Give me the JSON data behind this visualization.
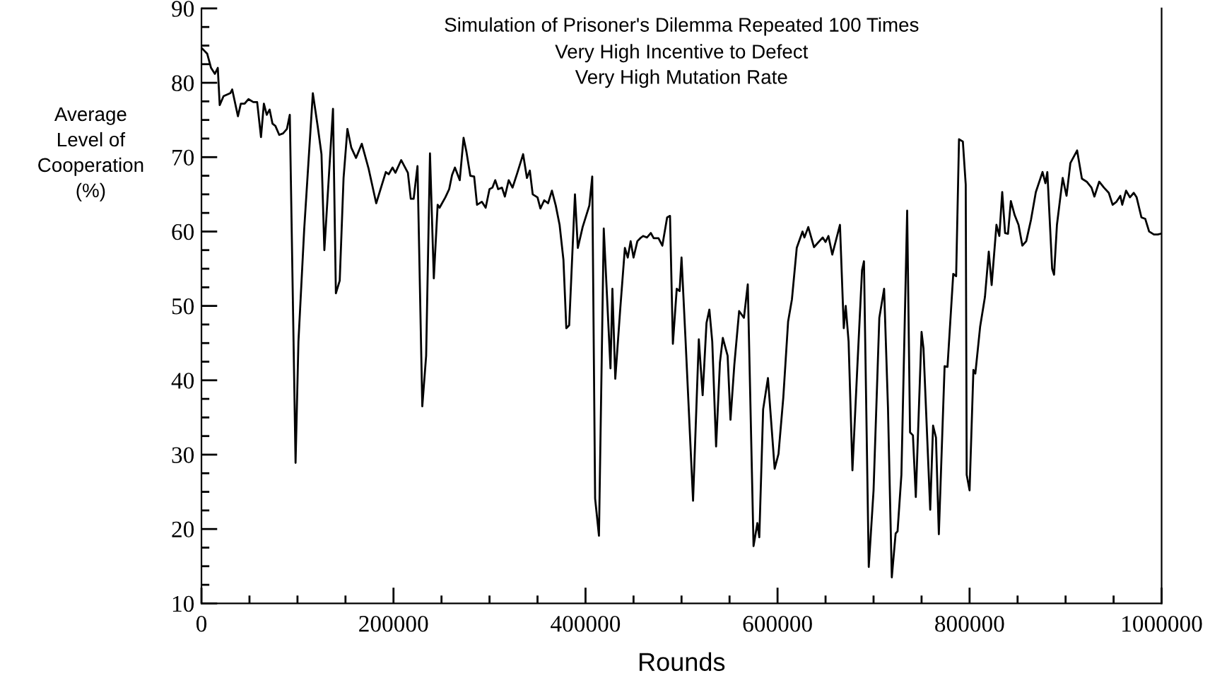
{
  "chart_data": {
    "type": "line",
    "title": "Simulation of Prisoner's Dilemma Repeated 100 Times",
    "subtitle": "Very High Incentive to Defect\nVery High Mutation Rate",
    "xlabel": "Rounds",
    "ylabel": "Average\nLevel of\nCooperation\n(%)",
    "xlim": [
      0,
      1000000
    ],
    "ylim": [
      10,
      90
    ],
    "xticks": [
      0,
      {
        "value": 50000,
        "label": null
      },
      {
        "value": 100000,
        "label": null
      },
      {
        "value": 150000,
        "label": null
      },
      200000,
      {
        "value": 250000,
        "label": null
      },
      {
        "value": 300000,
        "label": null
      },
      {
        "value": 350000,
        "label": null
      },
      400000,
      {
        "value": 450000,
        "label": null
      },
      {
        "value": 500000,
        "label": null
      },
      {
        "value": 550000,
        "label": null
      },
      600000,
      {
        "value": 650000,
        "label": null
      },
      {
        "value": 700000,
        "label": null
      },
      {
        "value": 750000,
        "label": null
      },
      800000,
      {
        "value": 850000,
        "label": null
      },
      {
        "value": 900000,
        "label": null
      },
      {
        "value": 950000,
        "label": null
      },
      1000000
    ],
    "yticks": [
      10,
      {
        "value": 12.5,
        "label": null
      },
      {
        "value": 15,
        "label": null
      },
      {
        "value": 17.5,
        "label": null
      },
      20,
      {
        "value": 22.5,
        "label": null
      },
      {
        "value": 25,
        "label": null
      },
      {
        "value": 27.5,
        "label": null
      },
      30,
      {
        "value": 32.5,
        "label": null
      },
      {
        "value": 35,
        "label": null
      },
      {
        "value": 37.5,
        "label": null
      },
      40,
      {
        "value": 42.5,
        "label": null
      },
      {
        "value": 45,
        "label": null
      },
      {
        "value": 47.5,
        "label": null
      },
      50,
      {
        "value": 52.5,
        "label": null
      },
      {
        "value": 55,
        "label": null
      },
      {
        "value": 57.5,
        "label": null
      },
      60,
      {
        "value": 62.5,
        "label": null
      },
      {
        "value": 65,
        "label": null
      },
      {
        "value": 67.5,
        "label": null
      },
      70,
      {
        "value": 72.5,
        "label": null
      },
      {
        "value": 75,
        "label": null
      },
      {
        "value": 77.5,
        "label": null
      },
      80,
      {
        "value": 82.5,
        "label": null
      },
      {
        "value": 85,
        "label": null
      },
      {
        "value": 87.5,
        "label": null
      },
      90
    ],
    "grid": false,
    "legend": false,
    "marker": "none",
    "line_style": "solid",
    "series": [
      {
        "color": "#000000",
        "x": [
          0,
          6000,
          10000,
          14000,
          17000,
          19000,
          23000,
          30000,
          32000,
          38000,
          41000,
          45000,
          49000,
          54000,
          58000,
          62000,
          65000,
          68000,
          71000,
          74000,
          77000,
          81000,
          85000,
          89000,
          92000,
          98000,
          101000,
          107000,
          116000,
          121000,
          125000,
          128000,
          137000,
          140000,
          144000,
          148000,
          152000,
          156000,
          161000,
          167000,
          174000,
          182000,
          192000,
          195000,
          199000,
          202000,
          208000,
          215000,
          218000,
          221000,
          225000,
          230000,
          234000,
          238000,
          242000,
          246000,
          248000,
          254000,
          258000,
          261000,
          264000,
          269000,
          273000,
          276000,
          280000,
          284000,
          287000,
          292000,
          296000,
          300000,
          303000,
          306000,
          309000,
          313000,
          316000,
          320000,
          324000,
          329000,
          335000,
          339000,
          342000,
          345000,
          350000,
          353000,
          357000,
          361000,
          365000,
          369000,
          373000,
          377000,
          380000,
          383000,
          389000,
          392000,
          397000,
          404000,
          407000,
          410000,
          414000,
          419000,
          426000,
          428000,
          431000,
          436000,
          441000,
          444000,
          447000,
          450000,
          454000,
          457000,
          460000,
          464000,
          468000,
          471000,
          476000,
          480000,
          485000,
          488000,
          491000,
          495000,
          498000,
          500000,
          504000,
          512000,
          518000,
          522000,
          526000,
          529000,
          532000,
          536000,
          540000,
          543000,
          548000,
          551000,
          555000,
          560000,
          565000,
          569000,
          575000,
          579000,
          581000,
          585000,
          590000,
          597000,
          601000,
          606000,
          611000,
          615000,
          620000,
          626000,
          628000,
          632000,
          638000,
          647000,
          650000,
          653000,
          657000,
          665000,
          669000,
          671000,
          674000,
          678000,
          683000,
          688000,
          690000,
          695000,
          700000,
          706000,
          711000,
          715000,
          719000,
          723000,
          725000,
          729000,
          735000,
          738000,
          741000,
          744000,
          750000,
          752000,
          759000,
          762000,
          765000,
          768000,
          774000,
          777000,
          783000,
          786000,
          789000,
          793000,
          796000,
          797000,
          800000,
          804000,
          806000,
          811000,
          816000,
          820000,
          823000,
          828000,
          831000,
          834000,
          837000,
          840000,
          843000,
          847000,
          851000,
          855000,
          859000,
          864000,
          869000,
          876000,
          879000,
          881000,
          886000,
          888000,
          891000,
          897000,
          901000,
          905000,
          912000,
          917000,
          922000,
          927000,
          930000,
          935000,
          940000,
          945000,
          949000,
          953000,
          957000,
          959000,
          963000,
          967000,
          971000,
          974000,
          979000,
          983000,
          987000,
          992000,
          996000,
          999000
        ],
        "values": [
          84.7,
          83.9,
          82.0,
          81.2,
          82.0,
          77.0,
          78.2,
          78.6,
          79.1,
          75.5,
          77.2,
          77.2,
          77.8,
          77.4,
          77.4,
          72.7,
          77.2,
          75.7,
          76.4,
          74.5,
          74.2,
          73.0,
          73.2,
          73.8,
          75.7,
          28.9,
          45.2,
          60.3,
          78.6,
          74.2,
          70.4,
          57.5,
          76.5,
          51.7,
          53.4,
          67.2,
          73.8,
          71.3,
          69.9,
          71.8,
          68.5,
          63.8,
          68.0,
          67.7,
          68.6,
          67.9,
          69.6,
          67.9,
          64.4,
          64.4,
          68.8,
          36.5,
          43.3,
          70.5,
          53.7,
          63.6,
          63.2,
          64.6,
          65.7,
          67.6,
          68.6,
          66.9,
          72.6,
          70.7,
          67.5,
          67.4,
          63.6,
          64.0,
          63.2,
          65.7,
          65.9,
          66.9,
          65.7,
          65.9,
          64.7,
          66.9,
          65.9,
          67.9,
          70.4,
          67.2,
          68.2,
          65.0,
          64.6,
          63.1,
          64.2,
          63.8,
          65.5,
          63.5,
          60.9,
          56.2,
          47.0,
          47.4,
          65.0,
          57.8,
          60.6,
          63.5,
          67.4,
          24.1,
          19.1,
          60.4,
          41.6,
          52.3,
          40.2,
          49.3,
          57.8,
          56.5,
          58.7,
          56.5,
          58.7,
          59.1,
          59.4,
          59.2,
          59.8,
          59.1,
          59.1,
          58.1,
          61.9,
          62.1,
          44.9,
          52.3,
          52.0,
          56.5,
          45.9,
          23.8,
          45.5,
          38.0,
          47.7,
          49.5,
          45.2,
          31.1,
          42.4,
          45.7,
          43.3,
          34.7,
          42.1,
          49.3,
          48.4,
          52.9,
          17.7,
          20.8,
          18.9,
          36.1,
          40.3,
          28.1,
          30.1,
          37.7,
          47.9,
          50.9,
          57.8,
          60.0,
          59.2,
          60.6,
          57.9,
          59.2,
          58.6,
          59.4,
          56.9,
          60.9,
          47.0,
          50.0,
          45.2,
          27.9,
          41.5,
          54.8,
          56.0,
          14.9,
          25.2,
          48.4,
          52.3,
          36.4,
          13.5,
          19.4,
          19.7,
          27.3,
          62.8,
          33.0,
          32.6,
          24.3,
          46.5,
          44.3,
          22.6,
          33.9,
          32.3,
          19.3,
          41.9,
          41.8,
          54.3,
          54.0,
          72.4,
          72.1,
          66.3,
          27.3,
          25.2,
          41.4,
          40.9,
          47.2,
          51.2,
          57.3,
          52.8,
          60.9,
          59.4,
          65.3,
          59.8,
          59.7,
          64.1,
          62.2,
          60.9,
          58.1,
          58.7,
          61.6,
          65.3,
          68.0,
          66.5,
          68.0,
          55.0,
          54.2,
          60.9,
          67.2,
          64.8,
          69.2,
          70.9,
          67.1,
          66.7,
          65.9,
          64.7,
          66.7,
          65.9,
          65.2,
          63.6,
          64.0,
          64.8,
          63.6,
          65.5,
          64.6,
          65.2,
          64.6,
          61.9,
          61.7,
          60.0,
          59.6,
          59.6,
          59.7
        ]
      }
    ]
  }
}
